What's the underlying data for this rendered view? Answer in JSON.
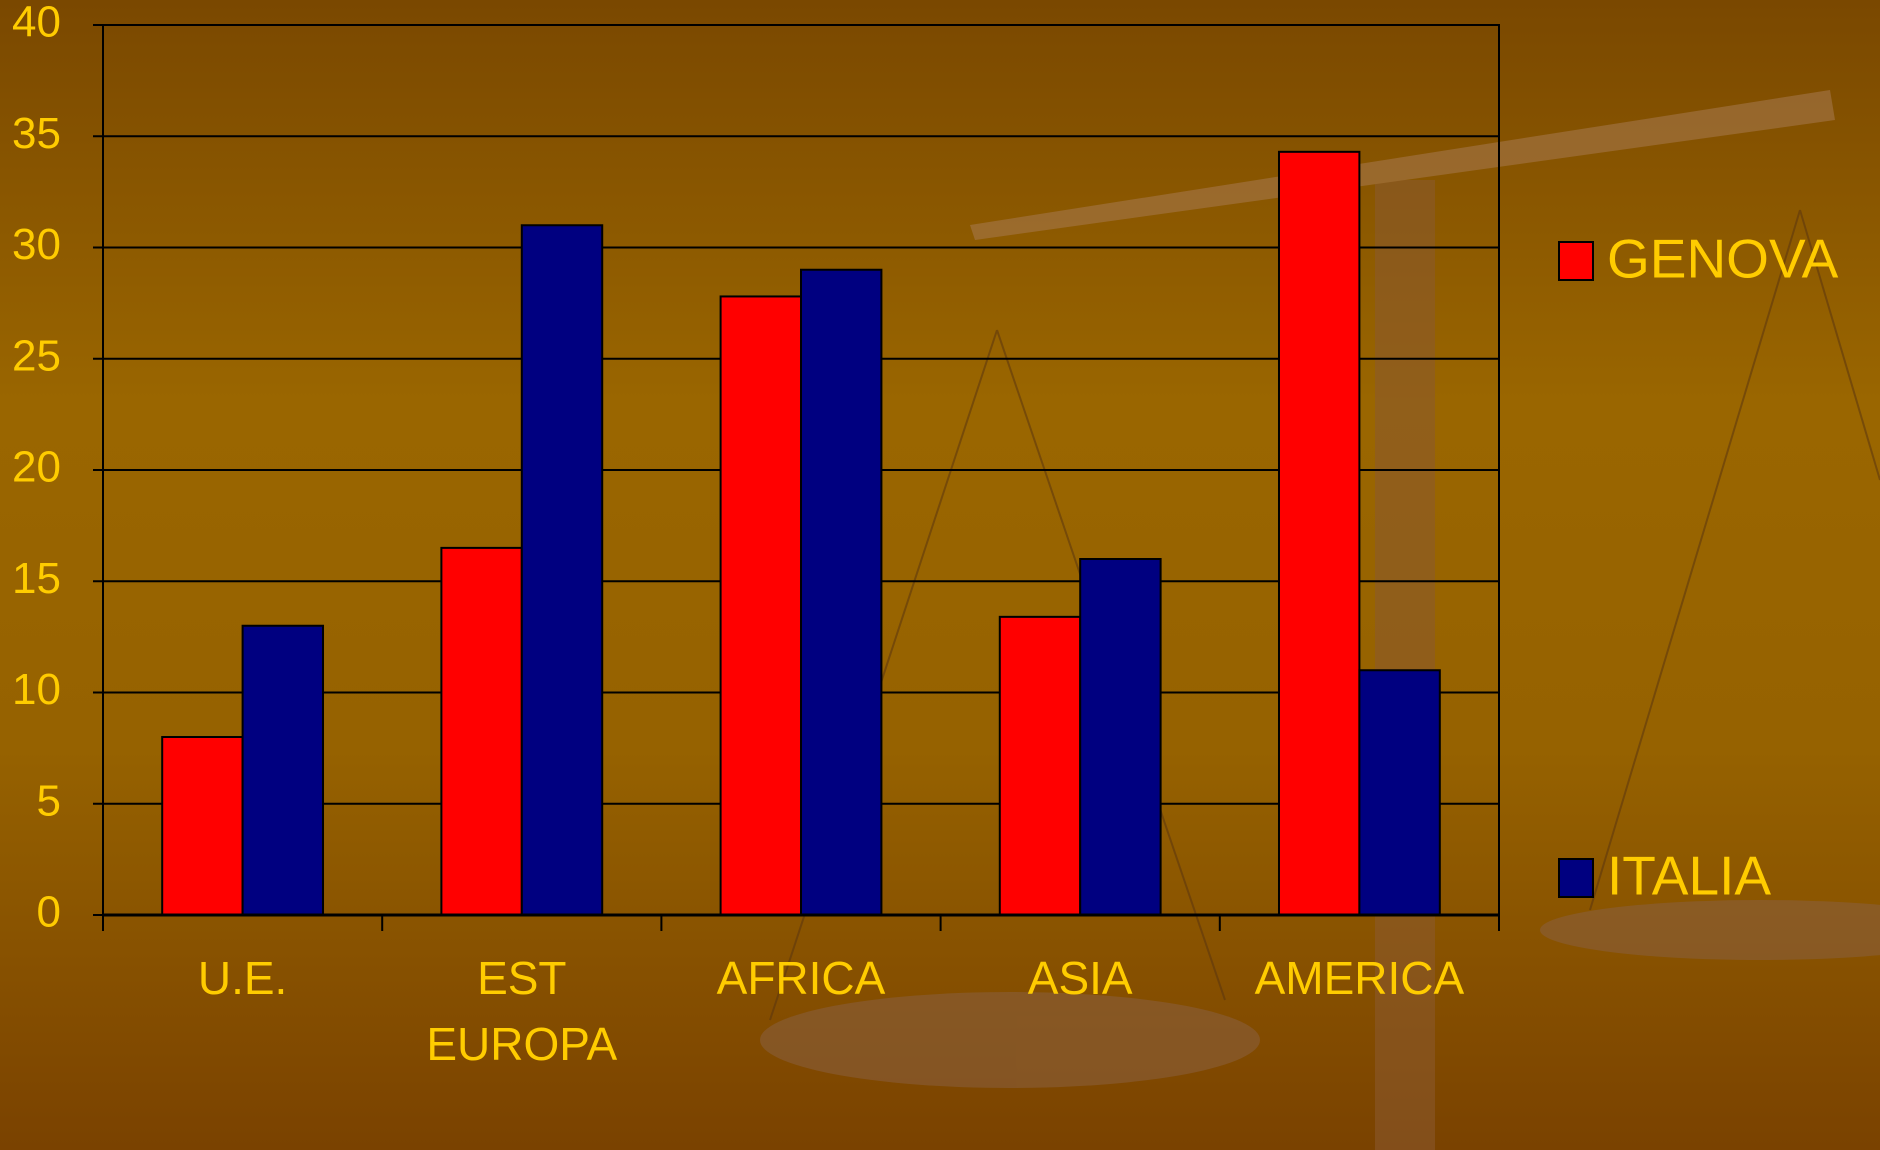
{
  "chart_data": {
    "type": "bar",
    "categories": [
      "U.E.",
      "EST EUROPA",
      "AFRICA",
      "ASIA",
      "AMERICA"
    ],
    "series": [
      {
        "name": "GENOVA",
        "color": "#ff0000",
        "values": [
          8,
          16.5,
          27.8,
          13.4,
          34.3
        ]
      },
      {
        "name": "ITALIA",
        "color": "#000080",
        "values": [
          13,
          31,
          29,
          16,
          11
        ]
      }
    ],
    "ylim": [
      0,
      40
    ],
    "yticks": [
      0,
      5,
      10,
      15,
      20,
      25,
      30,
      35,
      40
    ],
    "grid": true,
    "legend": "right"
  }
}
